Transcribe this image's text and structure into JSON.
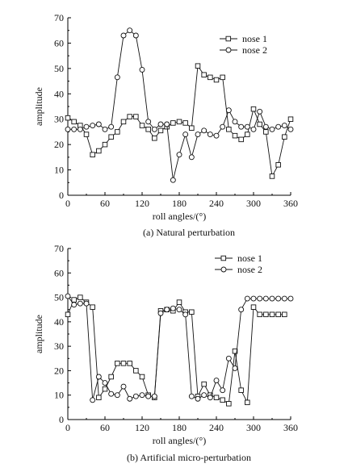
{
  "chart_data": [
    {
      "type": "line",
      "caption": "(a) Natural perturbation",
      "xlabel": "roll angles/(°)",
      "ylabel": "amplitude",
      "xlim": [
        0,
        360
      ],
      "ylim": [
        0,
        70
      ],
      "xticks": [
        0,
        60,
        120,
        180,
        240,
        300,
        360
      ],
      "yticks": [
        0,
        10,
        20,
        30,
        40,
        50,
        60,
        70
      ],
      "legend_position": "top-right",
      "series": [
        {
          "name": "nose 1",
          "marker": "square",
          "x": [
            0,
            10,
            20,
            30,
            40,
            50,
            60,
            70,
            80,
            90,
            100,
            110,
            120,
            130,
            140,
            150,
            160,
            170,
            180,
            190,
            200,
            210,
            220,
            230,
            240,
            250,
            260,
            270,
            280,
            290,
            300,
            310,
            320,
            330,
            340,
            350,
            360
          ],
          "y": [
            30.5,
            29,
            27.5,
            24,
            16,
            17.5,
            20,
            23,
            25,
            29,
            31,
            31,
            27.5,
            26,
            22.5,
            25.5,
            27,
            28.5,
            29,
            28.5,
            26.5,
            51,
            47.5,
            46.5,
            45.5,
            46.5,
            26,
            23.5,
            22,
            24,
            34,
            28,
            25,
            7.5,
            12,
            23,
            30
          ]
        },
        {
          "name": "nose 2",
          "marker": "circle",
          "x": [
            0,
            10,
            20,
            30,
            40,
            50,
            60,
            70,
            80,
            90,
            100,
            110,
            120,
            130,
            140,
            150,
            160,
            170,
            180,
            190,
            200,
            210,
            220,
            230,
            240,
            250,
            260,
            270,
            280,
            290,
            300,
            310,
            320,
            330,
            340,
            350,
            360
          ],
          "y": [
            26,
            26,
            26,
            27,
            27.5,
            28,
            26,
            27,
            46.5,
            63,
            65,
            63,
            49.5,
            29,
            26,
            28,
            28,
            6,
            16,
            24,
            15,
            24,
            25.5,
            24,
            23.5,
            27,
            33.5,
            29,
            27,
            27,
            26,
            33,
            27,
            26,
            27,
            27.5,
            26
          ]
        }
      ]
    },
    {
      "type": "line",
      "caption": "(b) Artificial micro-perturbation",
      "xlabel": "roll angles/(°)",
      "ylabel": "amplitude",
      "xlim": [
        0,
        360
      ],
      "ylim": [
        0,
        70
      ],
      "xticks": [
        0,
        60,
        120,
        180,
        240,
        300,
        360
      ],
      "yticks": [
        0,
        10,
        20,
        30,
        40,
        50,
        60,
        70
      ],
      "legend_position": "top-right",
      "series": [
        {
          "name": "nose 1",
          "marker": "square",
          "x": [
            0,
            10,
            20,
            30,
            40,
            50,
            60,
            70,
            80,
            90,
            100,
            110,
            120,
            130,
            140,
            150,
            160,
            170,
            180,
            190,
            200,
            210,
            220,
            230,
            240,
            250,
            260,
            270,
            280,
            290,
            300,
            310,
            320,
            330,
            340,
            350
          ],
          "y": [
            43,
            49,
            50,
            48,
            46,
            9,
            12.5,
            17.5,
            23,
            23,
            23,
            20,
            17.5,
            10,
            9,
            44.5,
            45,
            44.5,
            48,
            44,
            44,
            9.5,
            14.5,
            10,
            9,
            8,
            6.5,
            28,
            12,
            7,
            46,
            43,
            43,
            43,
            43,
            43
          ]
        },
        {
          "name": "nose 2",
          "marker": "circle",
          "x": [
            0,
            10,
            20,
            30,
            40,
            50,
            60,
            70,
            80,
            90,
            100,
            110,
            120,
            130,
            140,
            150,
            160,
            170,
            180,
            190,
            200,
            210,
            220,
            230,
            240,
            250,
            260,
            270,
            280,
            290,
            300,
            310,
            320,
            330,
            340,
            350,
            360
          ],
          "y": [
            50.5,
            47,
            47.5,
            47.5,
            8,
            17.5,
            15,
            10.5,
            10,
            13.5,
            8.5,
            9.5,
            10,
            9.5,
            9.5,
            43.5,
            45,
            45.5,
            45,
            43,
            9.5,
            8.5,
            10,
            9,
            16,
            12,
            25,
            21,
            45,
            49.5,
            49.5,
            49.5,
            49.5,
            49.5,
            49.5,
            49.5,
            49.5
          ]
        }
      ]
    }
  ]
}
